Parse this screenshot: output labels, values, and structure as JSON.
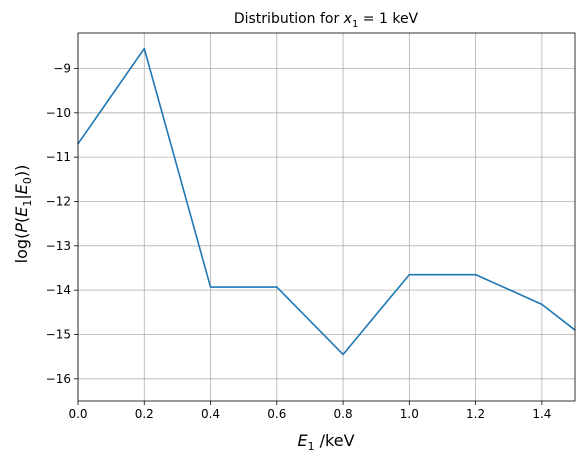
{
  "chart_data": {
    "type": "line",
    "title_prefix": "Distribution for ",
    "title_var": "x",
    "title_sub": "1",
    "title_suffix": " = 1 keV",
    "xlabel_var": "E",
    "xlabel_sub": "1",
    "xlabel_suffix": " /keV",
    "ylabel_prefix": "log(",
    "ylabel_p": "P",
    "ylabel_open": "(",
    "ylabel_e1": "E",
    "ylabel_e1_sub": "1",
    "ylabel_bar": "|",
    "ylabel_e0": "E",
    "ylabel_e0_sub": "0",
    "ylabel_close": "))",
    "xlim": [
      0,
      1.5
    ],
    "ylim": [
      -16.5,
      -8.2
    ],
    "xticks": [
      0.0,
      0.2,
      0.4,
      0.6,
      0.8,
      1.0,
      1.2,
      1.4
    ],
    "xtick_labels": [
      "0.0",
      "0.2",
      "0.4",
      "0.6",
      "0.8",
      "1.0",
      "1.2",
      "1.4"
    ],
    "yticks": [
      -16,
      -15,
      -14,
      -13,
      -12,
      -11,
      -10,
      -9
    ],
    "ytick_labels": [
      "−16",
      "−15",
      "−14",
      "−13",
      "−12",
      "−11",
      "−10",
      "−9"
    ],
    "grid": true,
    "series": [
      {
        "color": "#1f77b4",
        "x": [
          0.0,
          0.2,
          0.4,
          0.6,
          0.8,
          1.0,
          1.2,
          1.4,
          1.5
        ],
        "y": [
          -10.7,
          -8.55,
          -13.93,
          -13.93,
          -15.45,
          -13.65,
          -13.65,
          -14.32,
          -14.9
        ]
      }
    ]
  }
}
